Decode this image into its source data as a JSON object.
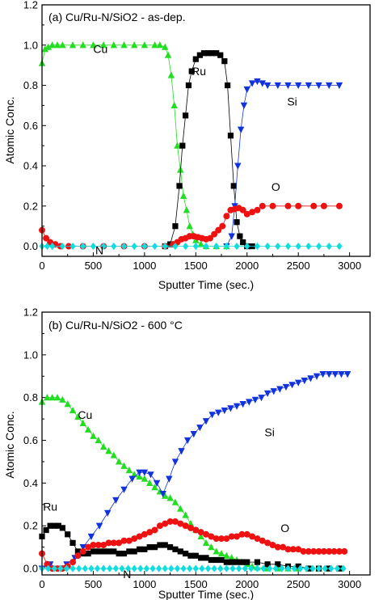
{
  "chart_data": [
    {
      "type": "line",
      "title": "(a) Cu/Ru-N/SiO2 - as-dep.",
      "xlabel": "Sputter Time (sec.)",
      "ylabel": "Atomic Conc.",
      "xlim": [
        0,
        3200
      ],
      "ylim": [
        -0.05,
        1.2
      ],
      "xticks": [
        "0",
        "500",
        "1000",
        "1500",
        "2000",
        "2500",
        "3000"
      ],
      "yticks": [
        "0.0",
        "0.2",
        "0.4",
        "0.6",
        "0.8",
        "1.0",
        "1.2"
      ],
      "annotations": [
        {
          "text": "Cu",
          "x": 570,
          "y": 0.96
        },
        {
          "text": "Ru",
          "x": 1530,
          "y": 0.85
        },
        {
          "text": "Si",
          "x": 2440,
          "y": 0.7
        },
        {
          "text": "O",
          "x": 2280,
          "y": 0.275
        },
        {
          "text": "N",
          "x": 560,
          "y": -0.04
        }
      ],
      "series": [
        {
          "name": "Cu",
          "color": "#22dd22",
          "marker": "triangle-up",
          "x": [
            0,
            30,
            60,
            100,
            150,
            200,
            300,
            400,
            500,
            600,
            700,
            800,
            900,
            1000,
            1100,
            1150,
            1200,
            1230,
            1260,
            1290,
            1320,
            1350,
            1380,
            1410,
            1440,
            1470,
            1500,
            1550,
            1600,
            1700,
            1800
          ],
          "y": [
            0.91,
            0.98,
            0.99,
            1.0,
            1.0,
            1.0,
            1.0,
            1.0,
            1.0,
            1.0,
            1.0,
            1.0,
            1.0,
            1.0,
            1.0,
            1.0,
            0.99,
            0.95,
            0.85,
            0.7,
            0.5,
            0.38,
            0.25,
            0.18,
            0.1,
            0.06,
            0.03,
            0.01,
            0.0,
            0.0,
            0.0
          ]
        },
        {
          "name": "Ru",
          "color": "#000000",
          "marker": "square",
          "x": [
            1200,
            1250,
            1300,
            1340,
            1370,
            1400,
            1430,
            1460,
            1500,
            1540,
            1580,
            1620,
            1660,
            1700,
            1740,
            1780,
            1810,
            1840,
            1870,
            1900,
            1930,
            1960,
            2000,
            2050
          ],
          "y": [
            0.0,
            0.01,
            0.1,
            0.3,
            0.5,
            0.65,
            0.8,
            0.87,
            0.93,
            0.95,
            0.96,
            0.96,
            0.96,
            0.96,
            0.95,
            0.92,
            0.8,
            0.55,
            0.3,
            0.12,
            0.05,
            0.02,
            0.0,
            0.0
          ]
        },
        {
          "name": "Si",
          "color": "#1133dd",
          "marker": "triangle-down",
          "x": [
            1800,
            1850,
            1880,
            1910,
            1940,
            1970,
            2000,
            2050,
            2100,
            2150,
            2200,
            2300,
            2400,
            2500,
            2600,
            2700,
            2800,
            2900
          ],
          "y": [
            0.0,
            0.05,
            0.2,
            0.4,
            0.58,
            0.7,
            0.78,
            0.81,
            0.82,
            0.81,
            0.8,
            0.8,
            0.8,
            0.8,
            0.8,
            0.8,
            0.8,
            0.8
          ]
        },
        {
          "name": "O",
          "color": "#ee1111",
          "marker": "circle",
          "x": [
            0,
            40,
            80,
            130,
            180,
            260,
            400,
            600,
            800,
            1000,
            1200,
            1280,
            1320,
            1360,
            1400,
            1440,
            1480,
            1520,
            1560,
            1600,
            1640,
            1680,
            1720,
            1760,
            1800,
            1840,
            1880,
            1920,
            1960,
            2000,
            2050,
            2100,
            2150,
            2250,
            2400,
            2500,
            2650,
            2750,
            2900
          ],
          "y": [
            0.08,
            0.04,
            0.02,
            0.01,
            0.0,
            0.0,
            0.0,
            0.0,
            0.0,
            0.0,
            0.0,
            0.01,
            0.02,
            0.035,
            0.04,
            0.05,
            0.05,
            0.045,
            0.04,
            0.035,
            0.04,
            0.06,
            0.08,
            0.1,
            0.15,
            0.18,
            0.185,
            0.19,
            0.18,
            0.16,
            0.17,
            0.18,
            0.2,
            0.2,
            0.2,
            0.2,
            0.2,
            0.2,
            0.2
          ]
        },
        {
          "name": "N",
          "color": "#11dddd",
          "marker": "diamond",
          "x": [
            0,
            50,
            100,
            200,
            300,
            400,
            500,
            600,
            700,
            800,
            900,
            1000,
            1100,
            1200,
            1300,
            1400,
            1500,
            1600,
            1700,
            1800,
            1900,
            2000,
            2100,
            2200,
            2300,
            2400,
            2500,
            2600,
            2700,
            2800,
            2900
          ],
          "y": [
            0,
            0,
            0,
            0,
            0,
            0,
            0,
            0,
            0,
            0,
            0,
            0,
            0,
            0,
            0,
            0,
            0,
            0,
            0,
            0,
            0,
            0,
            0,
            0,
            0,
            0,
            0,
            0,
            0,
            0,
            0
          ]
        }
      ]
    },
    {
      "type": "line",
      "title": "(b) Cu/Ru-N/SiO2 - 600 °C",
      "xlabel": "Sputter Time (sec.)",
      "ylabel": "Atomic Conc.",
      "xlim": [
        0,
        3200
      ],
      "ylim": [
        -0.03,
        1.2
      ],
      "xticks": [
        "0",
        "500",
        "1000",
        "1500",
        "2000",
        "2500",
        "3000"
      ],
      "yticks": [
        "0.0",
        "0.2",
        "0.4",
        "0.6",
        "0.8",
        "1.0",
        "1.2"
      ],
      "annotations": [
        {
          "text": "Cu",
          "x": 420,
          "y": 0.7
        },
        {
          "text": "Ru",
          "x": 80,
          "y": 0.27
        },
        {
          "text": "Si",
          "x": 2220,
          "y": 0.62
        },
        {
          "text": "O",
          "x": 2370,
          "y": 0.17
        },
        {
          "text": "N",
          "x": 830,
          "y": -0.045
        }
      ],
      "series": [
        {
          "name": "Cu",
          "color": "#22dd22",
          "marker": "triangle-up",
          "x": [
            0,
            50,
            100,
            150,
            200,
            250,
            300,
            350,
            400,
            450,
            500,
            550,
            600,
            650,
            700,
            750,
            800,
            850,
            900,
            950,
            1000,
            1050,
            1100,
            1150,
            1200,
            1250,
            1300,
            1350,
            1400,
            1450,
            1500,
            1550,
            1600,
            1650,
            1700,
            1750,
            1800,
            1850,
            1900,
            1950,
            2000,
            2050,
            2100,
            2200,
            2300,
            2400,
            2500,
            2600,
            2700,
            2800,
            2900
          ],
          "y": [
            0.78,
            0.8,
            0.8,
            0.8,
            0.79,
            0.77,
            0.74,
            0.71,
            0.68,
            0.65,
            0.62,
            0.6,
            0.57,
            0.55,
            0.53,
            0.5,
            0.48,
            0.46,
            0.44,
            0.43,
            0.42,
            0.4,
            0.38,
            0.36,
            0.34,
            0.33,
            0.31,
            0.28,
            0.25,
            0.21,
            0.18,
            0.15,
            0.12,
            0.1,
            0.08,
            0.07,
            0.06,
            0.05,
            0.04,
            0.03,
            0.02,
            0.01,
            0.005,
            0.0,
            0.0,
            0.0,
            0.0,
            0.0,
            0.0,
            0.0,
            0.0
          ]
        },
        {
          "name": "Ru",
          "color": "#000000",
          "marker": "square",
          "x": [
            0,
            40,
            80,
            120,
            160,
            200,
            250,
            300,
            350,
            400,
            450,
            500,
            550,
            600,
            650,
            700,
            750,
            800,
            850,
            900,
            950,
            1000,
            1050,
            1100,
            1150,
            1200,
            1250,
            1300,
            1350,
            1400,
            1450,
            1500,
            1550,
            1600,
            1650,
            1700,
            1750,
            1800,
            1850,
            1900,
            1950,
            2000,
            2100,
            2200,
            2300,
            2400,
            2500,
            2600,
            2700,
            2800,
            2900
          ],
          "y": [
            0.15,
            0.18,
            0.2,
            0.2,
            0.2,
            0.19,
            0.16,
            0.12,
            0.08,
            0.07,
            0.07,
            0.08,
            0.08,
            0.08,
            0.08,
            0.08,
            0.07,
            0.07,
            0.08,
            0.08,
            0.09,
            0.09,
            0.1,
            0.1,
            0.11,
            0.11,
            0.1,
            0.09,
            0.08,
            0.07,
            0.06,
            0.06,
            0.05,
            0.05,
            0.04,
            0.04,
            0.04,
            0.03,
            0.03,
            0.03,
            0.03,
            0.03,
            0.03,
            0.02,
            0.02,
            0.01,
            0.01,
            0.0,
            0.0,
            0.0,
            0.0
          ]
        },
        {
          "name": "Si",
          "color": "#1133dd",
          "marker": "triangle-down",
          "x": [
            0,
            80,
            160,
            240,
            320,
            400,
            480,
            560,
            640,
            720,
            800,
            880,
            950,
            1000,
            1060,
            1120,
            1180,
            1240,
            1300,
            1360,
            1420,
            1480,
            1540,
            1600,
            1660,
            1720,
            1780,
            1840,
            1900,
            1960,
            2020,
            2080,
            2140,
            2200,
            2260,
            2320,
            2380,
            2440,
            2500,
            2560,
            2620,
            2680,
            2740,
            2800,
            2860,
            2920,
            2980
          ],
          "y": [
            0.0,
            0.02,
            0.0,
            0.02,
            0.05,
            0.1,
            0.15,
            0.2,
            0.26,
            0.32,
            0.37,
            0.42,
            0.45,
            0.45,
            0.44,
            0.4,
            0.35,
            0.42,
            0.5,
            0.55,
            0.6,
            0.63,
            0.66,
            0.69,
            0.72,
            0.73,
            0.74,
            0.75,
            0.76,
            0.77,
            0.78,
            0.79,
            0.8,
            0.82,
            0.83,
            0.84,
            0.85,
            0.86,
            0.87,
            0.88,
            0.89,
            0.9,
            0.91,
            0.91,
            0.91,
            0.91,
            0.91
          ]
        },
        {
          "name": "O",
          "color": "#ee1111",
          "marker": "circle",
          "x": [
            0,
            50,
            100,
            150,
            200,
            250,
            300,
            350,
            400,
            450,
            500,
            550,
            600,
            650,
            700,
            750,
            800,
            850,
            900,
            950,
            1000,
            1050,
            1100,
            1150,
            1200,
            1250,
            1300,
            1350,
            1400,
            1450,
            1500,
            1550,
            1600,
            1650,
            1700,
            1750,
            1800,
            1850,
            1900,
            1950,
            2000,
            2050,
            2100,
            2150,
            2200,
            2250,
            2300,
            2350,
            2400,
            2450,
            2500,
            2550,
            2600,
            2650,
            2700,
            2750,
            2800,
            2850,
            2900,
            2950
          ],
          "y": [
            0.07,
            0.02,
            0.0,
            0.0,
            0.0,
            0.01,
            0.03,
            0.06,
            0.08,
            0.1,
            0.11,
            0.11,
            0.11,
            0.12,
            0.12,
            0.12,
            0.13,
            0.13,
            0.14,
            0.15,
            0.16,
            0.17,
            0.18,
            0.2,
            0.21,
            0.22,
            0.22,
            0.21,
            0.2,
            0.19,
            0.18,
            0.17,
            0.16,
            0.15,
            0.14,
            0.14,
            0.14,
            0.15,
            0.15,
            0.16,
            0.16,
            0.15,
            0.14,
            0.13,
            0.12,
            0.11,
            0.1,
            0.1,
            0.09,
            0.09,
            0.09,
            0.08,
            0.08,
            0.08,
            0.08,
            0.08,
            0.08,
            0.08,
            0.08,
            0.08
          ]
        },
        {
          "name": "N",
          "color": "#11dddd",
          "marker": "diamond",
          "x": [
            0,
            60,
            120,
            180,
            240,
            300,
            360,
            420,
            480,
            540,
            600,
            660,
            720,
            780,
            840,
            900,
            960,
            1020,
            1080,
            1140,
            1200,
            1260,
            1320,
            1380,
            1440,
            1500,
            1560,
            1620,
            1680,
            1740,
            1800,
            1860,
            1920,
            1980,
            2040,
            2100,
            2160,
            2220,
            2280,
            2340,
            2400,
            2460,
            2520,
            2580,
            2640,
            2700,
            2760,
            2820,
            2880,
            2940
          ],
          "y": [
            0,
            0,
            0,
            0,
            0,
            0,
            0,
            0,
            0,
            0,
            0,
            0,
            0,
            0,
            0,
            0,
            0,
            0,
            0,
            0,
            0,
            0,
            0,
            0,
            0,
            0,
            0,
            0,
            0,
            0,
            0,
            0,
            0,
            0,
            0,
            0,
            0,
            0,
            0,
            0,
            0,
            0,
            0,
            0,
            0,
            0,
            0,
            0,
            0,
            0
          ]
        }
      ]
    }
  ]
}
